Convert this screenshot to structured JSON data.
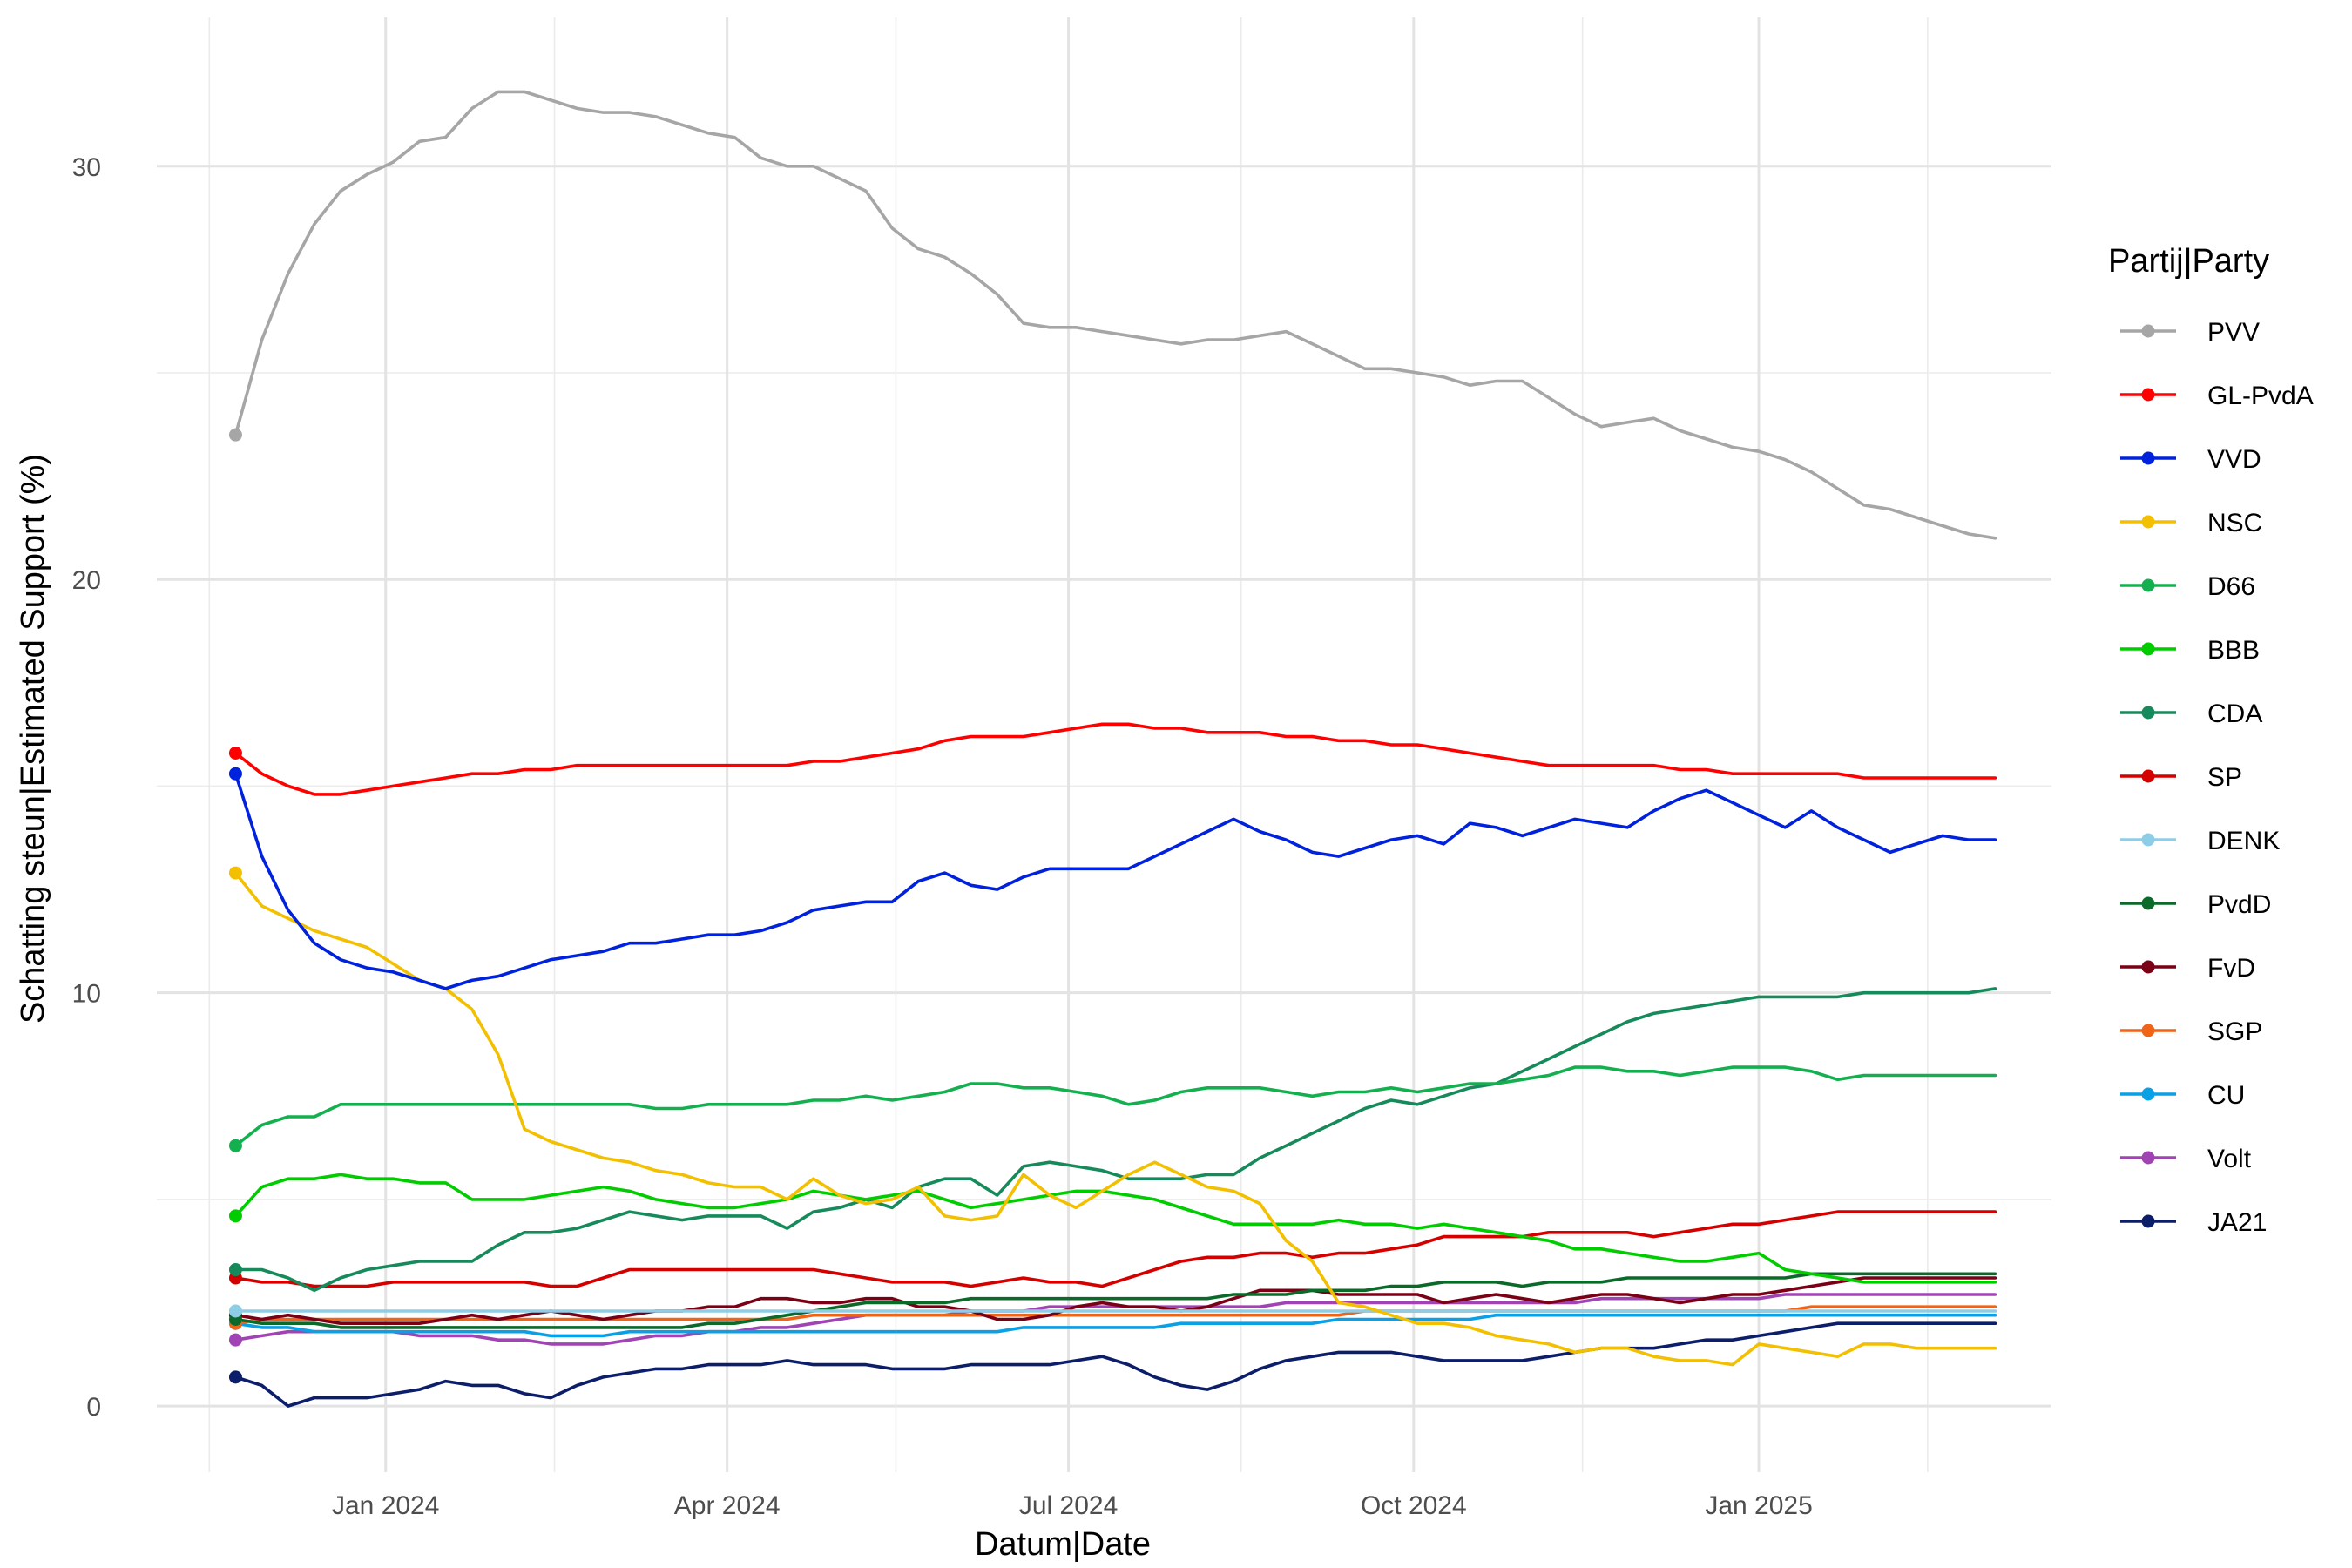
{
  "chart_data": {
    "type": "line",
    "xlabel": "Datum|Date",
    "ylabel": "Schatting steun|Estimated Support (%)",
    "legend_title": "Partij|Party",
    "legend_position": "right",
    "grid": true,
    "xlim": [
      "2023-11-01",
      "2025-03-20"
    ],
    "ylim": [
      -1.6,
      33.6
    ],
    "x_ticks": [
      {
        "date": "2024-01-01",
        "label": "Jan 2024"
      },
      {
        "date": "2024-04-01",
        "label": "Apr 2024"
      },
      {
        "date": "2024-07-01",
        "label": "Jul 2024"
      },
      {
        "date": "2024-10-01",
        "label": "Oct 2024"
      },
      {
        "date": "2025-01-01",
        "label": "Jan 2025"
      }
    ],
    "x_minor_ticks": [
      "2023-11-15",
      "2024-02-15",
      "2024-05-16",
      "2024-08-16",
      "2024-11-15",
      "2025-02-15"
    ],
    "y_ticks": [
      0,
      10,
      20,
      30
    ],
    "y_minor_ticks": [
      5,
      15,
      25
    ],
    "x": [
      "2023-11-22",
      "2023-11-29",
      "2023-12-06",
      "2023-12-13",
      "2023-12-20",
      "2023-12-27",
      "2024-01-03",
      "2024-01-10",
      "2024-01-17",
      "2024-01-24",
      "2024-01-31",
      "2024-02-07",
      "2024-02-14",
      "2024-02-21",
      "2024-02-28",
      "2024-03-06",
      "2024-03-13",
      "2024-03-20",
      "2024-03-27",
      "2024-04-03",
      "2024-04-10",
      "2024-04-17",
      "2024-04-24",
      "2024-05-01",
      "2024-05-08",
      "2024-05-15",
      "2024-05-22",
      "2024-05-29",
      "2024-06-05",
      "2024-06-12",
      "2024-06-19",
      "2024-06-26",
      "2024-07-03",
      "2024-07-10",
      "2024-07-17",
      "2024-07-24",
      "2024-07-31",
      "2024-08-07",
      "2024-08-14",
      "2024-08-21",
      "2024-08-28",
      "2024-09-04",
      "2024-09-11",
      "2024-09-18",
      "2024-09-25",
      "2024-10-02",
      "2024-10-09",
      "2024-10-16",
      "2024-10-23",
      "2024-10-30",
      "2024-11-06",
      "2024-11-13",
      "2024-11-20",
      "2024-11-27",
      "2024-12-04",
      "2024-12-11",
      "2024-12-18",
      "2024-12-25",
      "2025-01-01",
      "2025-01-08",
      "2025-01-15",
      "2025-01-22",
      "2025-01-29",
      "2025-02-05",
      "2025-02-12",
      "2025-02-19",
      "2025-02-26",
      "2025-03-05"
    ],
    "series": [
      {
        "name": "PVV",
        "color": "#a6a6a6",
        "values": [
          23.5,
          25.8,
          27.4,
          28.6,
          29.4,
          29.8,
          30.1,
          30.6,
          30.7,
          31.4,
          31.8,
          31.8,
          31.6,
          31.4,
          31.3,
          31.3,
          31.2,
          31.0,
          30.8,
          30.7,
          30.2,
          30.0,
          30.0,
          29.7,
          29.4,
          28.5,
          28.0,
          27.8,
          27.4,
          26.9,
          26.2,
          26.1,
          26.1,
          26.0,
          25.9,
          25.8,
          25.7,
          25.8,
          25.8,
          25.9,
          26.0,
          25.7,
          25.4,
          25.1,
          25.1,
          25.0,
          24.9,
          24.7,
          24.8,
          24.8,
          24.4,
          24.0,
          23.7,
          23.8,
          23.9,
          23.6,
          23.4,
          23.2,
          23.1,
          22.9,
          22.6,
          22.2,
          21.8,
          21.7,
          21.5,
          21.3,
          21.1,
          21.0
        ]
      },
      {
        "name": "GL-PvdA",
        "color": "#ff0000",
        "values": [
          15.8,
          15.3,
          15.0,
          14.8,
          14.8,
          14.9,
          15.0,
          15.1,
          15.2,
          15.3,
          15.3,
          15.4,
          15.4,
          15.5,
          15.5,
          15.5,
          15.5,
          15.5,
          15.5,
          15.5,
          15.5,
          15.5,
          15.6,
          15.6,
          15.7,
          15.8,
          15.9,
          16.1,
          16.2,
          16.2,
          16.2,
          16.3,
          16.4,
          16.5,
          16.5,
          16.4,
          16.4,
          16.3,
          16.3,
          16.3,
          16.2,
          16.2,
          16.1,
          16.1,
          16.0,
          16.0,
          15.9,
          15.8,
          15.7,
          15.6,
          15.5,
          15.5,
          15.5,
          15.5,
          15.5,
          15.4,
          15.4,
          15.3,
          15.3,
          15.3,
          15.3,
          15.3,
          15.2,
          15.2,
          15.2,
          15.2,
          15.2,
          15.2
        ]
      },
      {
        "name": "VVD",
        "color": "#0022dd",
        "values": [
          15.3,
          13.3,
          12.0,
          11.2,
          10.8,
          10.6,
          10.5,
          10.3,
          10.1,
          10.3,
          10.4,
          10.6,
          10.8,
          10.9,
          11.0,
          11.2,
          11.2,
          11.3,
          11.4,
          11.4,
          11.5,
          11.7,
          12.0,
          12.1,
          12.2,
          12.2,
          12.7,
          12.9,
          12.6,
          12.5,
          12.8,
          13.0,
          13.0,
          13.0,
          13.0,
          13.3,
          13.6,
          13.9,
          14.2,
          13.9,
          13.7,
          13.4,
          13.3,
          13.5,
          13.7,
          13.8,
          13.6,
          14.1,
          14.0,
          13.8,
          14.0,
          14.2,
          14.1,
          14.0,
          14.4,
          14.7,
          14.9,
          14.6,
          14.3,
          14.0,
          14.4,
          14.0,
          13.7,
          13.4,
          13.6,
          13.8,
          13.7,
          13.7
        ]
      },
      {
        "name": "NSC",
        "color": "#f2c000",
        "values": [
          12.9,
          12.1,
          11.8,
          11.5,
          11.3,
          11.1,
          10.7,
          10.3,
          10.1,
          9.6,
          8.5,
          6.7,
          6.4,
          6.2,
          6.0,
          5.9,
          5.7,
          5.6,
          5.4,
          5.3,
          5.3,
          5.0,
          5.5,
          5.1,
          4.9,
          5.0,
          5.3,
          4.6,
          4.5,
          4.6,
          5.6,
          5.1,
          4.8,
          5.2,
          5.6,
          5.9,
          5.6,
          5.3,
          5.2,
          4.9,
          4.0,
          3.5,
          2.5,
          2.4,
          2.2,
          2.0,
          2.0,
          1.9,
          1.7,
          1.6,
          1.5,
          1.3,
          1.4,
          1.4,
          1.2,
          1.1,
          1.1,
          1.0,
          1.5,
          1.4,
          1.3,
          1.2,
          1.5,
          1.5,
          1.4,
          1.4,
          1.4,
          1.4
        ]
      },
      {
        "name": "D66",
        "color": "#14b050",
        "values": [
          6.3,
          6.8,
          7.0,
          7.0,
          7.3,
          7.3,
          7.3,
          7.3,
          7.3,
          7.3,
          7.3,
          7.3,
          7.3,
          7.3,
          7.3,
          7.3,
          7.2,
          7.2,
          7.3,
          7.3,
          7.3,
          7.3,
          7.4,
          7.4,
          7.5,
          7.4,
          7.5,
          7.6,
          7.8,
          7.8,
          7.7,
          7.7,
          7.6,
          7.5,
          7.3,
          7.4,
          7.6,
          7.7,
          7.7,
          7.7,
          7.6,
          7.5,
          7.6,
          7.6,
          7.7,
          7.6,
          7.7,
          7.8,
          7.8,
          7.9,
          8.0,
          8.2,
          8.2,
          8.1,
          8.1,
          8.0,
          8.1,
          8.2,
          8.2,
          8.2,
          8.1,
          7.9,
          8.0,
          8.0,
          8.0,
          8.0,
          8.0,
          8.0
        ]
      },
      {
        "name": "BBB",
        "color": "#00cc00",
        "values": [
          4.6,
          5.3,
          5.5,
          5.5,
          5.6,
          5.5,
          5.5,
          5.4,
          5.4,
          5.0,
          5.0,
          5.0,
          5.1,
          5.2,
          5.3,
          5.2,
          5.0,
          4.9,
          4.8,
          4.8,
          4.9,
          5.0,
          5.2,
          5.1,
          5.0,
          5.1,
          5.2,
          5.0,
          4.8,
          4.9,
          5.0,
          5.1,
          5.2,
          5.2,
          5.1,
          5.0,
          4.8,
          4.6,
          4.4,
          4.4,
          4.4,
          4.4,
          4.5,
          4.4,
          4.4,
          4.3,
          4.4,
          4.3,
          4.2,
          4.1,
          4.0,
          3.8,
          3.8,
          3.7,
          3.6,
          3.5,
          3.5,
          3.6,
          3.7,
          3.3,
          3.2,
          3.1,
          3.0,
          3.0,
          3.0,
          3.0,
          3.0,
          3.0
        ]
      },
      {
        "name": "CDA",
        "color": "#168a5a",
        "values": [
          3.3,
          3.3,
          3.1,
          2.8,
          3.1,
          3.3,
          3.4,
          3.5,
          3.5,
          3.5,
          3.9,
          4.2,
          4.2,
          4.3,
          4.5,
          4.7,
          4.6,
          4.5,
          4.6,
          4.6,
          4.6,
          4.3,
          4.7,
          4.8,
          5.0,
          4.8,
          5.3,
          5.5,
          5.5,
          5.1,
          5.8,
          5.9,
          5.8,
          5.7,
          5.5,
          5.5,
          5.5,
          5.6,
          5.6,
          6.0,
          6.3,
          6.6,
          6.9,
          7.2,
          7.4,
          7.3,
          7.5,
          7.7,
          7.8,
          8.1,
          8.4,
          8.7,
          9.0,
          9.3,
          9.5,
          9.6,
          9.7,
          9.8,
          9.9,
          9.9,
          9.9,
          9.9,
          10.0,
          10.0,
          10.0,
          10.0,
          10.0,
          10.1
        ]
      },
      {
        "name": "SP",
        "color": "#d40000",
        "values": [
          3.1,
          3.0,
          3.0,
          2.9,
          2.9,
          2.9,
          3.0,
          3.0,
          3.0,
          3.0,
          3.0,
          3.0,
          2.9,
          2.9,
          3.1,
          3.3,
          3.3,
          3.3,
          3.3,
          3.3,
          3.3,
          3.3,
          3.3,
          3.2,
          3.1,
          3.0,
          3.0,
          3.0,
          2.9,
          3.0,
          3.1,
          3.0,
          3.0,
          2.9,
          3.1,
          3.3,
          3.5,
          3.6,
          3.6,
          3.7,
          3.7,
          3.6,
          3.7,
          3.7,
          3.8,
          3.9,
          4.1,
          4.1,
          4.1,
          4.1,
          4.2,
          4.2,
          4.2,
          4.2,
          4.1,
          4.2,
          4.3,
          4.4,
          4.4,
          4.5,
          4.6,
          4.7,
          4.7,
          4.7,
          4.7,
          4.7,
          4.7,
          4.7
        ]
      },
      {
        "name": "DENK",
        "color": "#8ecde6",
        "values": [
          2.3,
          2.3,
          2.3,
          2.3,
          2.3,
          2.3,
          2.3,
          2.3,
          2.3,
          2.3,
          2.3,
          2.3,
          2.3,
          2.3,
          2.3,
          2.3,
          2.3,
          2.3,
          2.3,
          2.3,
          2.3,
          2.3,
          2.3,
          2.3,
          2.3,
          2.3,
          2.3,
          2.3,
          2.3,
          2.3,
          2.3,
          2.3,
          2.3,
          2.3,
          2.3,
          2.3,
          2.3,
          2.3,
          2.3,
          2.3,
          2.3,
          2.3,
          2.3,
          2.3,
          2.3,
          2.3,
          2.3,
          2.3,
          2.3,
          2.3,
          2.3,
          2.3,
          2.3,
          2.3,
          2.3,
          2.3,
          2.3,
          2.3,
          2.3,
          2.3,
          2.3,
          2.3,
          2.3,
          2.3,
          2.3,
          2.3,
          2.3,
          2.3
        ]
      },
      {
        "name": "PvdD",
        "color": "#0b6a2a",
        "values": [
          2.1,
          2.0,
          2.0,
          2.0,
          1.9,
          1.9,
          1.9,
          1.9,
          1.9,
          1.9,
          1.9,
          1.9,
          1.9,
          1.9,
          1.9,
          1.9,
          1.9,
          1.9,
          2.0,
          2.0,
          2.1,
          2.2,
          2.3,
          2.4,
          2.5,
          2.5,
          2.5,
          2.5,
          2.6,
          2.6,
          2.6,
          2.6,
          2.6,
          2.6,
          2.6,
          2.6,
          2.6,
          2.6,
          2.7,
          2.7,
          2.7,
          2.8,
          2.8,
          2.8,
          2.9,
          2.9,
          3.0,
          3.0,
          3.0,
          2.9,
          3.0,
          3.0,
          3.0,
          3.1,
          3.1,
          3.1,
          3.1,
          3.1,
          3.1,
          3.1,
          3.2,
          3.2,
          3.2,
          3.2,
          3.2,
          3.2,
          3.2,
          3.2
        ]
      },
      {
        "name": "FvD",
        "color": "#7a0015",
        "values": [
          2.2,
          2.1,
          2.2,
          2.1,
          2.0,
          2.0,
          2.0,
          2.0,
          2.1,
          2.2,
          2.1,
          2.2,
          2.3,
          2.2,
          2.1,
          2.2,
          2.3,
          2.3,
          2.4,
          2.4,
          2.6,
          2.6,
          2.5,
          2.5,
          2.6,
          2.6,
          2.4,
          2.4,
          2.3,
          2.1,
          2.1,
          2.2,
          2.4,
          2.5,
          2.4,
          2.4,
          2.3,
          2.4,
          2.6,
          2.8,
          2.8,
          2.8,
          2.7,
          2.7,
          2.7,
          2.7,
          2.5,
          2.6,
          2.7,
          2.6,
          2.5,
          2.6,
          2.7,
          2.7,
          2.6,
          2.5,
          2.6,
          2.7,
          2.7,
          2.8,
          2.9,
          3.0,
          3.1,
          3.1,
          3.1,
          3.1,
          3.1,
          3.1
        ]
      },
      {
        "name": "SGP",
        "color": "#f06418",
        "values": [
          2.0,
          2.1,
          2.1,
          2.1,
          2.1,
          2.1,
          2.1,
          2.1,
          2.1,
          2.1,
          2.1,
          2.1,
          2.1,
          2.1,
          2.1,
          2.1,
          2.1,
          2.1,
          2.1,
          2.1,
          2.1,
          2.1,
          2.2,
          2.2,
          2.2,
          2.2,
          2.2,
          2.2,
          2.2,
          2.2,
          2.2,
          2.2,
          2.2,
          2.2,
          2.2,
          2.2,
          2.2,
          2.2,
          2.2,
          2.2,
          2.2,
          2.2,
          2.2,
          2.3,
          2.3,
          2.3,
          2.3,
          2.3,
          2.3,
          2.3,
          2.3,
          2.3,
          2.3,
          2.3,
          2.3,
          2.3,
          2.3,
          2.3,
          2.3,
          2.3,
          2.4,
          2.4,
          2.4,
          2.4,
          2.4,
          2.4,
          2.4,
          2.4
        ]
      },
      {
        "name": "CU",
        "color": "#0aa0e6",
        "values": [
          2.0,
          1.9,
          1.9,
          1.8,
          1.8,
          1.8,
          1.8,
          1.8,
          1.8,
          1.8,
          1.8,
          1.8,
          1.7,
          1.7,
          1.7,
          1.8,
          1.8,
          1.8,
          1.8,
          1.8,
          1.8,
          1.8,
          1.8,
          1.8,
          1.8,
          1.8,
          1.8,
          1.8,
          1.8,
          1.8,
          1.9,
          1.9,
          1.9,
          1.9,
          1.9,
          1.9,
          2.0,
          2.0,
          2.0,
          2.0,
          2.0,
          2.0,
          2.1,
          2.1,
          2.1,
          2.1,
          2.1,
          2.1,
          2.2,
          2.2,
          2.2,
          2.2,
          2.2,
          2.2,
          2.2,
          2.2,
          2.2,
          2.2,
          2.2,
          2.2,
          2.2,
          2.2,
          2.2,
          2.2,
          2.2,
          2.2,
          2.2,
          2.2
        ]
      },
      {
        "name": "Volt",
        "color": "#a044b4",
        "values": [
          1.6,
          1.7,
          1.8,
          1.8,
          1.8,
          1.8,
          1.8,
          1.7,
          1.7,
          1.7,
          1.6,
          1.6,
          1.5,
          1.5,
          1.5,
          1.6,
          1.7,
          1.7,
          1.8,
          1.8,
          1.9,
          1.9,
          2.0,
          2.1,
          2.2,
          2.2,
          2.2,
          2.2,
          2.3,
          2.3,
          2.3,
          2.4,
          2.4,
          2.4,
          2.4,
          2.4,
          2.4,
          2.4,
          2.4,
          2.4,
          2.5,
          2.5,
          2.5,
          2.5,
          2.5,
          2.5,
          2.5,
          2.5,
          2.5,
          2.5,
          2.5,
          2.5,
          2.6,
          2.6,
          2.6,
          2.6,
          2.6,
          2.6,
          2.6,
          2.7,
          2.7,
          2.7,
          2.7,
          2.7,
          2.7,
          2.7,
          2.7,
          2.7
        ]
      },
      {
        "name": "JA21",
        "color": "#0c1e6a",
        "values": [
          0.7,
          0.5,
          0.0,
          0.2,
          0.2,
          0.2,
          0.3,
          0.4,
          0.6,
          0.5,
          0.5,
          0.3,
          0.2,
          0.5,
          0.7,
          0.8,
          0.9,
          0.9,
          1.0,
          1.0,
          1.0,
          1.1,
          1.0,
          1.0,
          1.0,
          0.9,
          0.9,
          0.9,
          1.0,
          1.0,
          1.0,
          1.0,
          1.1,
          1.2,
          1.0,
          0.7,
          0.5,
          0.4,
          0.6,
          0.9,
          1.1,
          1.2,
          1.3,
          1.3,
          1.3,
          1.2,
          1.1,
          1.1,
          1.1,
          1.1,
          1.2,
          1.3,
          1.4,
          1.4,
          1.4,
          1.5,
          1.6,
          1.6,
          1.7,
          1.8,
          1.9,
          2.0,
          2.0,
          2.0,
          2.0,
          2.0,
          2.0,
          2.0
        ]
      }
    ]
  }
}
